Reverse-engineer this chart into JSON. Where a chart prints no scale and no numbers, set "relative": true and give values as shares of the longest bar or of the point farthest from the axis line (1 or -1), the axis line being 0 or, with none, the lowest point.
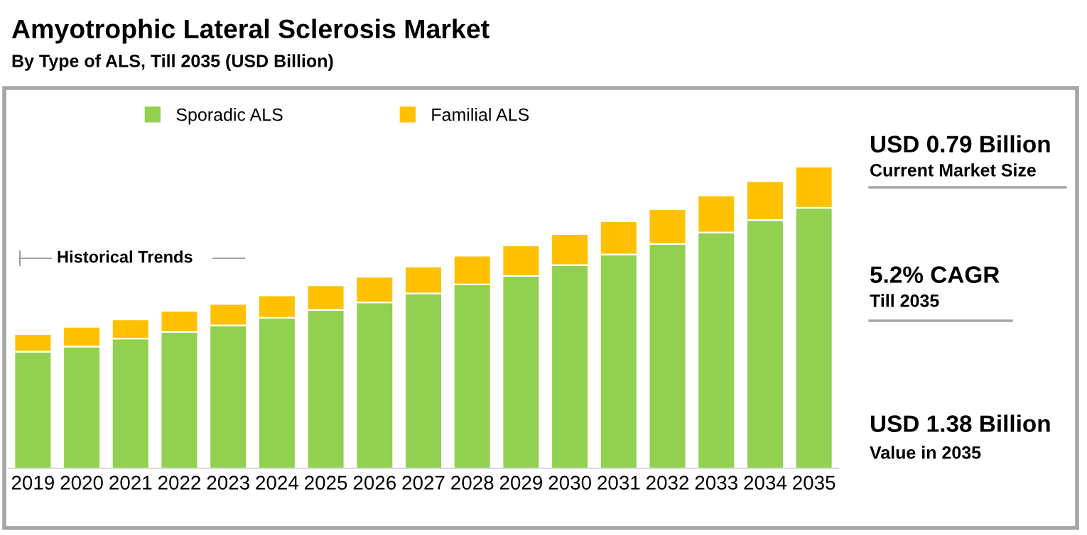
{
  "chart_data": {
    "type": "bar",
    "title": "Amyotrophic Lateral Sclerosis Market",
    "subtitle": "By Type of ALS, Till 2035 (USD Billion)",
    "categories": [
      "2019",
      "2020",
      "2021",
      "2022",
      "2023",
      "2024",
      "2025",
      "2026",
      "2027",
      "2028",
      "2029",
      "2030",
      "2031",
      "2032",
      "2033",
      "2034",
      "2035"
    ],
    "stacked": true,
    "relative": true,
    "legend": "top",
    "grid": false,
    "series": [
      {
        "name": "Sporadic ALS",
        "color": "#92d050",
        "values": [
          0.387,
          0.404,
          0.43,
          0.452,
          0.474,
          0.499,
          0.525,
          0.55,
          0.58,
          0.61,
          0.638,
          0.674,
          0.709,
          0.744,
          0.782,
          0.823,
          0.864
        ]
      },
      {
        "name": "Familial ALS",
        "color": "#ffc000",
        "values": [
          0.058,
          0.065,
          0.064,
          0.07,
          0.071,
          0.074,
          0.082,
          0.085,
          0.089,
          0.095,
          0.101,
          0.103,
          0.11,
          0.115,
          0.123,
          0.129,
          0.136
        ]
      }
    ],
    "annotations": [
      "Historical Trends",
      "USD 0.79 Billion",
      "Current Market Size",
      "5.2% CAGR",
      "Till 2035",
      "USD 1.38 Billion",
      "Value in 2035"
    ]
  }
}
